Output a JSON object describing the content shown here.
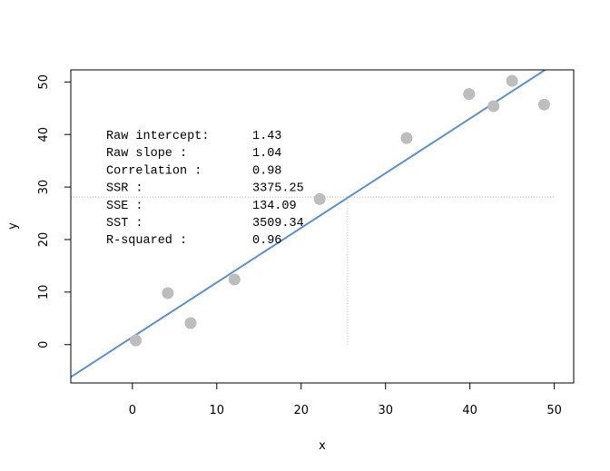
{
  "chart_data": {
    "type": "scatter",
    "title": "",
    "xlabel": "x",
    "ylabel": "y",
    "xlim": [
      -7.3,
      52.3
    ],
    "ylim": [
      -7.3,
      52.3
    ],
    "x_ticks": [
      0,
      10,
      20,
      30,
      40,
      50
    ],
    "y_ticks": [
      0,
      10,
      20,
      30,
      40,
      50
    ],
    "grid": false,
    "points": [
      {
        "x": 0.4,
        "y": 0.8
      },
      {
        "x": 4.2,
        "y": 9.8
      },
      {
        "x": 6.9,
        "y": 4.1
      },
      {
        "x": 12.1,
        "y": 12.4
      },
      {
        "x": 22.2,
        "y": 27.7
      },
      {
        "x": 32.5,
        "y": 39.3
      },
      {
        "x": 39.9,
        "y": 47.7
      },
      {
        "x": 42.8,
        "y": 45.4
      },
      {
        "x": 45.0,
        "y": 50.2
      },
      {
        "x": 48.8,
        "y": 45.7
      }
    ],
    "fit_line": {
      "intercept": 1.43,
      "slope": 1.04,
      "color": "#5b8fd6"
    },
    "point_color": "#bdbdbd",
    "guide": {
      "x": 25.5,
      "y": 28.1,
      "x_end": 50.0,
      "y_end": 0
    },
    "stats": [
      {
        "label": "Raw intercept:",
        "value": "1.43"
      },
      {
        "label": "Raw slope    :",
        "value": "1.04"
      },
      {
        "label": "Correlation  :",
        "value": "0.98"
      },
      {
        "label": "SSR          :",
        "value": "3375.25"
      },
      {
        "label": "SSE          :",
        "value": "134.09"
      },
      {
        "label": "SST          :",
        "value": "3509.34"
      },
      {
        "label": "R-squared    :",
        "value": "0.96"
      }
    ]
  }
}
